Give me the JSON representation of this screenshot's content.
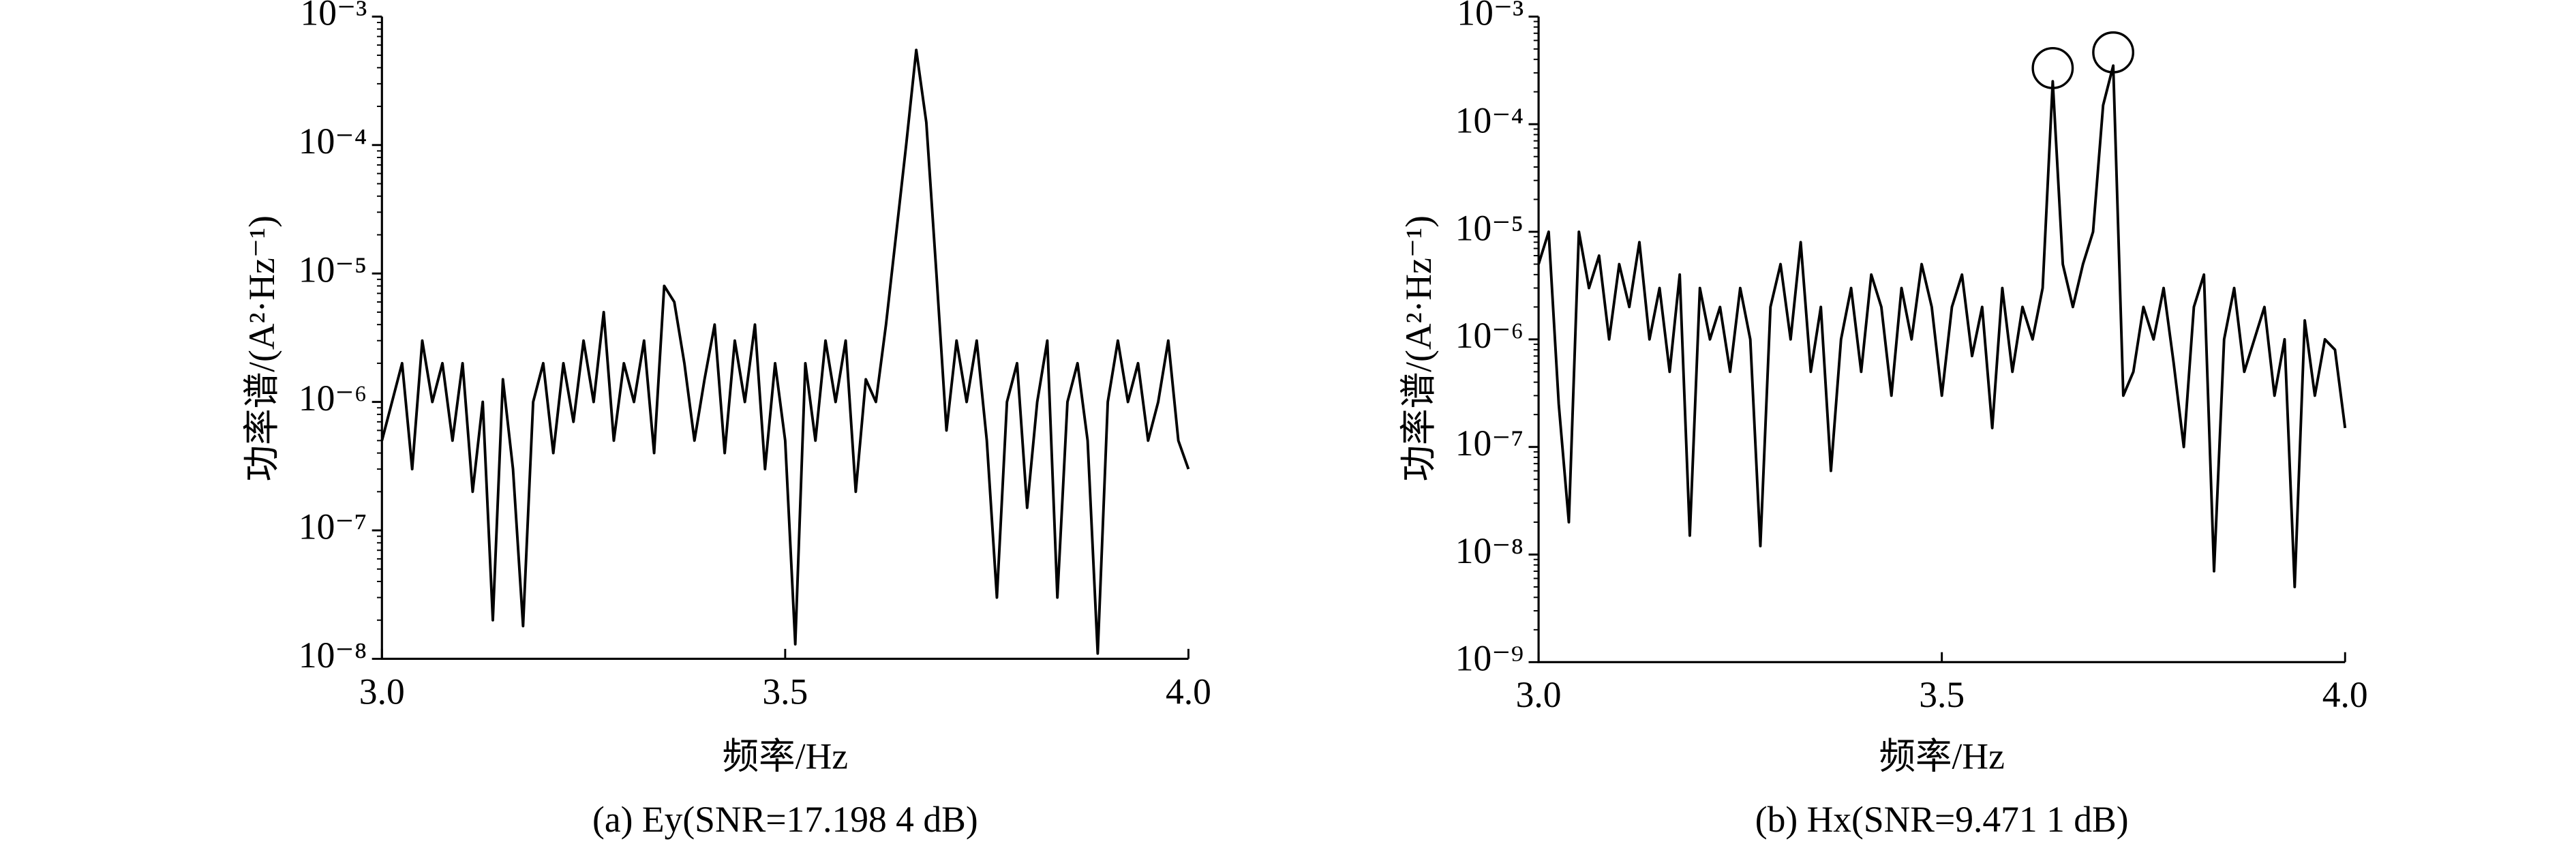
{
  "chart_data": [
    {
      "type": "line",
      "log_y": true,
      "color": "#000000",
      "ylabel": "功率谱/(A²·Hz⁻¹)",
      "xlabel": "频率/Hz",
      "caption": "(a) Ey(SNR=17.198 4 dB)",
      "xlim": [
        3,
        4
      ],
      "xticks": [
        {
          "value": 3,
          "label": "3.0"
        },
        3.5,
        {
          "value": 4,
          "label": "4.0"
        }
      ],
      "ylim": [
        1e-08,
        0.001
      ],
      "yticks": [
        {
          "value": 1e-08,
          "label": "10⁻⁸"
        },
        {
          "value": 1e-07,
          "label": "10⁻⁷"
        },
        {
          "value": 1e-06,
          "label": "10⁻⁶"
        },
        {
          "value": 1e-05,
          "label": "10⁻⁵"
        },
        {
          "value": 0.0001,
          "label": "10⁻⁴"
        },
        {
          "value": 0.001,
          "label": "10⁻³"
        }
      ],
      "x": [
        3.0,
        3.0125,
        3.025,
        3.0375,
        3.05,
        3.0625,
        3.075,
        3.0875,
        3.1,
        3.1125,
        3.125,
        3.1375,
        3.15,
        3.1625,
        3.175,
        3.1875,
        3.2,
        3.2125,
        3.225,
        3.2375,
        3.25,
        3.2625,
        3.275,
        3.2875,
        3.3,
        3.3125,
        3.325,
        3.3375,
        3.35,
        3.3625,
        3.375,
        3.3875,
        3.4,
        3.4125,
        3.425,
        3.4375,
        3.45,
        3.4625,
        3.475,
        3.4875,
        3.5,
        3.5125,
        3.525,
        3.5375,
        3.55,
        3.5625,
        3.575,
        3.5875,
        3.6,
        3.6125,
        3.625,
        3.6375,
        3.65,
        3.6625,
        3.675,
        3.6875,
        3.7,
        3.7125,
        3.725,
        3.7375,
        3.75,
        3.7625,
        3.775,
        3.7875,
        3.8,
        3.8125,
        3.825,
        3.8375,
        3.85,
        3.8625,
        3.875,
        3.8875,
        3.9,
        3.9125,
        3.925,
        3.9375,
        3.95,
        3.9625,
        3.975,
        3.9875,
        4.0
      ],
      "values": [
        5e-07,
        1e-06,
        2e-06,
        3e-07,
        3e-06,
        1e-06,
        2e-06,
        5e-07,
        2e-06,
        2e-07,
        1e-06,
        2e-08,
        1.5e-06,
        3e-07,
        1.8e-08,
        1e-06,
        2e-06,
        4e-07,
        2e-06,
        7e-07,
        3e-06,
        1e-06,
        5e-06,
        5e-07,
        2e-06,
        1e-06,
        3e-06,
        4e-07,
        8e-06,
        6e-06,
        2e-06,
        5e-07,
        1.5e-06,
        4e-06,
        4e-07,
        3e-06,
        1e-06,
        4e-06,
        3e-07,
        2e-06,
        5e-07,
        1.3e-08,
        2e-06,
        5e-07,
        3e-06,
        1e-06,
        3e-06,
        2e-07,
        1.5e-06,
        1e-06,
        4e-06,
        2e-05,
        0.0001,
        0.00055,
        0.00015,
        1e-05,
        6e-07,
        3e-06,
        1e-06,
        3e-06,
        5e-07,
        3e-08,
        1e-06,
        2e-06,
        1.5e-07,
        1e-06,
        3e-06,
        3e-08,
        1e-06,
        2e-06,
        5e-07,
        1.1e-08,
        1e-06,
        3e-06,
        1e-06,
        2e-06,
        5e-07,
        1e-06,
        3e-06,
        5e-07,
        3e-07
      ]
    },
    {
      "type": "line",
      "log_y": true,
      "color": "#000000",
      "circle_peaks": true,
      "ylabel": "功率谱/(A²·Hz⁻¹)",
      "xlabel": "频率/Hz",
      "caption": "(b) Hx(SNR=9.471 1 dB)",
      "xlim": [
        3,
        4
      ],
      "xticks": [
        {
          "value": 3,
          "label": "3.0"
        },
        3.5,
        {
          "value": 4,
          "label": "4.0"
        }
      ],
      "ylim": [
        1e-09,
        0.001
      ],
      "yticks": [
        {
          "value": 1e-09,
          "label": "10⁻⁹"
        },
        {
          "value": 1e-08,
          "label": "10⁻⁸"
        },
        {
          "value": 1e-07,
          "label": "10⁻⁷"
        },
        {
          "value": 1e-06,
          "label": "10⁻⁶"
        },
        {
          "value": 1e-05,
          "label": "10⁻⁵"
        },
        {
          "value": 0.0001,
          "label": "10⁻⁴"
        },
        {
          "value": 0.001,
          "label": "10⁻³"
        }
      ],
      "x": [
        3.0,
        3.0125,
        3.025,
        3.0375,
        3.05,
        3.0625,
        3.075,
        3.0875,
        3.1,
        3.1125,
        3.125,
        3.1375,
        3.15,
        3.1625,
        3.175,
        3.1875,
        3.2,
        3.2125,
        3.225,
        3.2375,
        3.25,
        3.2625,
        3.275,
        3.2875,
        3.3,
        3.3125,
        3.325,
        3.3375,
        3.35,
        3.3625,
        3.375,
        3.3875,
        3.4,
        3.4125,
        3.425,
        3.4375,
        3.45,
        3.4625,
        3.475,
        3.4875,
        3.5,
        3.5125,
        3.525,
        3.5375,
        3.55,
        3.5625,
        3.575,
        3.5875,
        3.6,
        3.6125,
        3.625,
        3.6375,
        3.65,
        3.6625,
        3.675,
        3.6875,
        3.7,
        3.7125,
        3.725,
        3.7375,
        3.75,
        3.7625,
        3.775,
        3.7875,
        3.8,
        3.8125,
        3.825,
        3.8375,
        3.85,
        3.8625,
        3.875,
        3.8875,
        3.9,
        3.9125,
        3.925,
        3.9375,
        3.95,
        3.9625,
        3.975,
        3.9875,
        4.0
      ],
      "values": [
        5e-06,
        1e-05,
        2.5e-07,
        2e-08,
        1e-05,
        3e-06,
        6e-06,
        1e-06,
        5e-06,
        2e-06,
        8e-06,
        1e-06,
        3e-06,
        5e-07,
        4e-06,
        1.5e-08,
        3e-06,
        1e-06,
        2e-06,
        5e-07,
        3e-06,
        1e-06,
        1.2e-08,
        2e-06,
        5e-06,
        1e-06,
        8e-06,
        5e-07,
        2e-06,
        6e-08,
        1e-06,
        3e-06,
        5e-07,
        4e-06,
        2e-06,
        3e-07,
        3e-06,
        1e-06,
        5e-06,
        2e-06,
        3e-07,
        2e-06,
        4e-06,
        7e-07,
        2e-06,
        1.5e-07,
        3e-06,
        5e-07,
        2e-06,
        1e-06,
        3e-06,
        0.00025,
        5e-06,
        2e-06,
        5e-06,
        1e-05,
        0.00015,
        0.00035,
        3e-07,
        5e-07,
        2e-06,
        1e-06,
        3e-06,
        6e-07,
        1e-07,
        2e-06,
        4e-06,
        7e-09,
        1e-06,
        3e-06,
        5e-07,
        1e-06,
        2e-06,
        3e-07,
        1e-06,
        5e-09,
        1.5e-06,
        3e-07,
        1e-06,
        8e-07,
        1.5e-07
      ]
    }
  ]
}
